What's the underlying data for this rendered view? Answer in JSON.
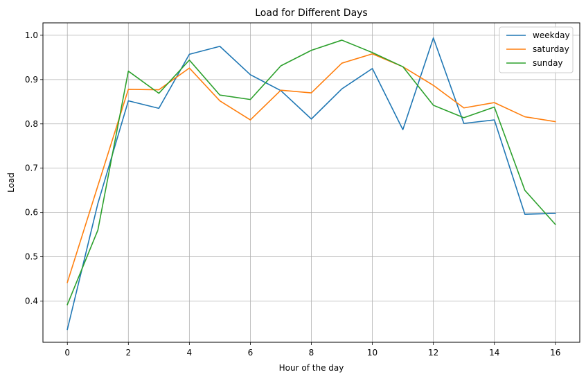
{
  "chart_data": {
    "type": "line",
    "title": "Load for Different Days",
    "xlabel": "Hour of the day",
    "ylabel": "Load",
    "x": [
      0,
      1,
      2,
      3,
      4,
      5,
      6,
      7,
      8,
      9,
      10,
      11,
      12,
      13,
      14,
      15,
      16
    ],
    "xlim": [
      -0.8,
      16.8
    ],
    "ylim": [
      0.307,
      1.028
    ],
    "xticks": [
      0,
      2,
      4,
      6,
      8,
      10,
      12,
      14,
      16
    ],
    "xtick_labels": [
      "0",
      "2",
      "4",
      "6",
      "8",
      "10",
      "12",
      "14",
      "16"
    ],
    "yticks": [
      0.4,
      0.5,
      0.6,
      0.7,
      0.8,
      0.9,
      1.0
    ],
    "ytick_labels": [
      "0.4",
      "0.5",
      "0.6",
      "0.7",
      "0.8",
      "0.9",
      "1.0"
    ],
    "grid": true,
    "legend_position": "top-right",
    "series": [
      {
        "name": "weekday",
        "color": "#1f77b4",
        "values": [
          0.336,
          0.62,
          0.852,
          0.835,
          0.957,
          0.975,
          0.911,
          0.875,
          0.811,
          0.879,
          0.925,
          0.787,
          0.994,
          0.801,
          0.809,
          0.596,
          0.598
        ]
      },
      {
        "name": "saturday",
        "color": "#ff7f0e",
        "values": [
          0.442,
          0.66,
          0.878,
          0.877,
          0.926,
          0.852,
          0.809,
          0.876,
          0.87,
          0.937,
          0.958,
          0.929,
          0.887,
          0.836,
          0.848,
          0.816,
          0.805
        ]
      },
      {
        "name": "sunday",
        "color": "#2ca02c",
        "values": [
          0.392,
          0.56,
          0.919,
          0.869,
          0.944,
          0.865,
          0.855,
          0.931,
          0.966,
          0.989,
          0.961,
          0.929,
          0.842,
          0.814,
          0.838,
          0.65,
          0.573
        ]
      }
    ]
  }
}
